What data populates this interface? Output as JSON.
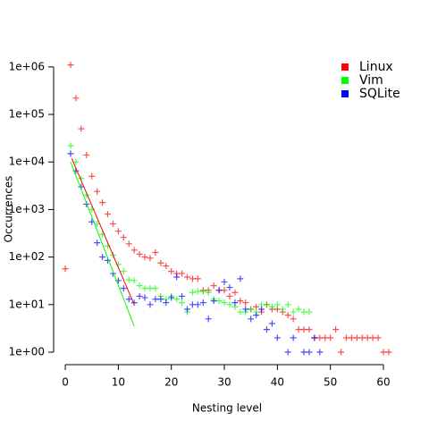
{
  "chart_data": {
    "type": "scatter",
    "x_label": "Nesting level",
    "y_label": "Occurrences",
    "log_y": true,
    "legend": "top-right",
    "xlim": [
      -2.2,
      63.2
    ],
    "ylim": [
      0.546,
      1900000
    ],
    "xticks": [
      0,
      10,
      20,
      30,
      40,
      50,
      60
    ],
    "yticks": [
      {
        "value": 1,
        "label": "1e+00"
      },
      {
        "value": 10,
        "label": "1e+01"
      },
      {
        "value": 100,
        "label": "1e+02"
      },
      {
        "value": 1000,
        "label": "1e+03"
      },
      {
        "value": 10000,
        "label": "1e+04"
      },
      {
        "value": 100000,
        "label": "1e+05"
      },
      {
        "value": 1000000,
        "label": "1e+06"
      }
    ],
    "series": [
      {
        "name": "Linux",
        "color": "#ff0000",
        "x": [
          0,
          1,
          2,
          3,
          4,
          5,
          6,
          7,
          8,
          9,
          10,
          11,
          12,
          13,
          14,
          15,
          16,
          17,
          18,
          19,
          20,
          21,
          22,
          23,
          24,
          25,
          26,
          27,
          28,
          29,
          30,
          31,
          32,
          33,
          34,
          35,
          36,
          37,
          38,
          39,
          40,
          41,
          42,
          43,
          44,
          45,
          46,
          47,
          48,
          49,
          50,
          51,
          52,
          53,
          54,
          55,
          56,
          57,
          58,
          59,
          60,
          61
        ],
        "values": [
          57,
          1100000,
          220000,
          50000,
          14000,
          5000,
          2400,
          1400,
          800,
          500,
          350,
          260,
          190,
          140,
          115,
          100,
          95,
          125,
          75,
          65,
          50,
          45,
          45,
          38,
          35,
          35,
          20,
          20,
          25,
          20,
          20,
          15,
          18,
          12,
          11,
          8,
          9,
          7,
          10,
          8,
          8,
          7,
          6,
          5,
          3,
          3,
          3,
          2,
          2,
          2,
          2,
          3,
          1,
          2,
          2,
          2,
          2,
          2,
          2,
          2,
          1,
          1
        ]
      },
      {
        "name": "Vim",
        "color": "#00ff00",
        "x": [
          1,
          2,
          3,
          4,
          5,
          6,
          7,
          8,
          9,
          10,
          11,
          12,
          13,
          14,
          15,
          16,
          17,
          18,
          19,
          20,
          21,
          22,
          23,
          24,
          25,
          26,
          27,
          28,
          29,
          30,
          31,
          32,
          33,
          34,
          35,
          36,
          37,
          38,
          39,
          40,
          41,
          42,
          43,
          44,
          45,
          46
        ],
        "values": [
          22000,
          10000,
          4500,
          2000,
          1000,
          500,
          300,
          170,
          110,
          70,
          50,
          33,
          32,
          25,
          22,
          22,
          22,
          15,
          13,
          15,
          13,
          11,
          7,
          18,
          19,
          19,
          18,
          13,
          12,
          11,
          10,
          9,
          7,
          7,
          8,
          7,
          10,
          10,
          9,
          10,
          8,
          10,
          7,
          8,
          7,
          7
        ]
      },
      {
        "name": "SQLite",
        "color": "#0000ff",
        "x": [
          1,
          2,
          3,
          4,
          5,
          6,
          7,
          8,
          9,
          10,
          11,
          12,
          13,
          14,
          15,
          16,
          17,
          18,
          19,
          20,
          21,
          22,
          23,
          24,
          25,
          26,
          27,
          28,
          29,
          30,
          31,
          32,
          33,
          34,
          35,
          36,
          37,
          38,
          39,
          40,
          42,
          43,
          45,
          46,
          47,
          48
        ],
        "values": [
          15000,
          6500,
          3000,
          1300,
          550,
          200,
          100,
          85,
          45,
          32,
          22,
          13,
          11,
          15,
          14,
          10,
          13,
          13,
          11,
          14,
          38,
          15,
          8,
          10,
          10,
          11,
          5,
          12,
          20,
          30,
          23,
          11,
          35,
          8,
          5,
          6,
          8,
          3,
          4,
          2,
          1,
          2,
          1,
          1,
          2,
          1
        ]
      }
    ],
    "fit_lines": [
      {
        "color": "#ff0000",
        "x": [
          1.2,
          13
        ],
        "values": [
          12000,
          10
        ]
      },
      {
        "color": "#00ff00",
        "x": [
          1,
          13
        ],
        "values": [
          10000,
          3.5
        ]
      }
    ]
  }
}
